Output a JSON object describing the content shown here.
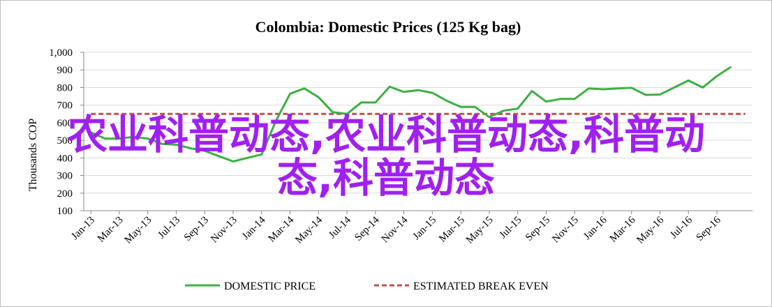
{
  "chart_data": {
    "type": "line",
    "title": "Colombia:  Domestic Prices (125 Kg bag)",
    "ylabel": "Thousands COP",
    "xlabel": "",
    "ylim": [
      100,
      1000
    ],
    "yticks": [
      "1,000",
      "900",
      "800",
      "700",
      "600",
      "500",
      "400",
      "300",
      "200",
      "100"
    ],
    "ytick_values": [
      1000,
      900,
      800,
      700,
      600,
      500,
      400,
      300,
      200,
      100
    ],
    "grid": "horizontal",
    "legend_position": "bottom",
    "x": [
      "Jan-13",
      "Feb-13",
      "Mar-13",
      "Apr-13",
      "May-13",
      "Jun-13",
      "Jul-13",
      "Aug-13",
      "Sep-13",
      "Oct-13",
      "Nov-13",
      "Dec-13",
      "Jan-14",
      "Feb-14",
      "Mar-14",
      "Apr-14",
      "May-14",
      "Jun-14",
      "Jul-14",
      "Aug-14",
      "Sep-14",
      "Oct-14",
      "Nov-14",
      "Dec-14",
      "Jan-15",
      "Feb-15",
      "Mar-15",
      "Apr-15",
      "May-15",
      "Jun-15",
      "Jul-15",
      "Aug-15",
      "Sep-15",
      "Oct-15",
      "Nov-15",
      "Dec-15",
      "Jan-16",
      "Feb-16",
      "Mar-16",
      "Apr-16",
      "May-16",
      "Jun-16",
      "Jul-16",
      "Aug-16",
      "Sep-16",
      "Oct-16",
      "Nov-16"
    ],
    "xtick_labels": [
      "Jan-13",
      "Mar-13",
      "May-13",
      "Jul-13",
      "Sep-13",
      "Nov-13",
      "Jan-14",
      "Mar-14",
      "May-14",
      "Jul-14",
      "Sep-14",
      "Nov-14",
      "Jan-15",
      "Mar-15",
      "May-15",
      "Jul-15",
      "Sep-15",
      "Nov-15",
      "Jan-16",
      "Mar-16",
      "May-16",
      "Jul-16",
      "Sep-16"
    ],
    "series": [
      {
        "name": "DOMESTIC PRICE",
        "color": "#3cb043",
        "style": "solid",
        "values": [
          545,
          510,
          510,
          520,
          510,
          480,
          475,
          455,
          440,
          410,
          380,
          400,
          420,
          610,
          765,
          795,
          745,
          660,
          650,
          715,
          715,
          805,
          775,
          785,
          770,
          725,
          690,
          690,
          632,
          668,
          680,
          780,
          720,
          735,
          735,
          795,
          790,
          795,
          798,
          758,
          760,
          800,
          840,
          800,
          865,
          918,
          null
        ]
      },
      {
        "name": "ESTIMATED BREAK EVEN",
        "color": "#c0504d",
        "style": "dashed",
        "values": [
          650,
          650,
          650,
          650,
          650,
          650,
          650,
          650,
          650,
          650,
          650,
          650,
          650,
          650,
          650,
          650,
          650,
          650,
          650,
          650,
          650,
          650,
          650,
          650,
          650,
          650,
          650,
          650,
          650,
          650,
          650,
          650,
          650,
          650,
          650,
          650,
          650,
          650,
          650,
          650,
          650,
          650,
          650,
          650,
          650,
          650,
          650
        ]
      }
    ]
  },
  "overlay": {
    "line1": "农业科普动态,农业科普动态,科普动",
    "line2": "态,科普动态"
  }
}
